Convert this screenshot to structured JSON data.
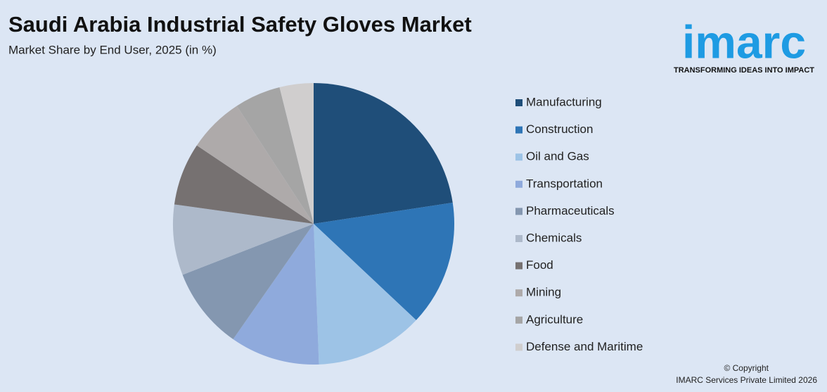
{
  "chart_data": {
    "type": "pie",
    "title": "Saudi Arabia Industrial Safety Gloves Market",
    "subtitle": "Market Share by End User, 2025 (in %)",
    "categories": [
      "Manufacturing",
      "Construction",
      "Oil and Gas",
      "Transportation",
      "Pharmaceuticals",
      "Chemicals",
      "Food",
      "Mining",
      "Agriculture",
      "Defense and Maritime"
    ],
    "values": [
      22.6,
      14.4,
      12.4,
      10.3,
      9.4,
      8.1,
      7.2,
      6.4,
      5.3,
      3.9
    ],
    "colors": [
      "#1f4e79",
      "#2e75b6",
      "#9dc3e6",
      "#8faadc",
      "#8497b0",
      "#adb9ca",
      "#767171",
      "#aeaaaa",
      "#a5a5a5",
      "#d0cece"
    ]
  },
  "logo": {
    "name": "imarc",
    "tagline": "TRANSFORMING IDEAS INTO IMPACT"
  },
  "copyright": {
    "line1": "© Copyright",
    "line2": "IMARC Services Private Limited 2026"
  }
}
